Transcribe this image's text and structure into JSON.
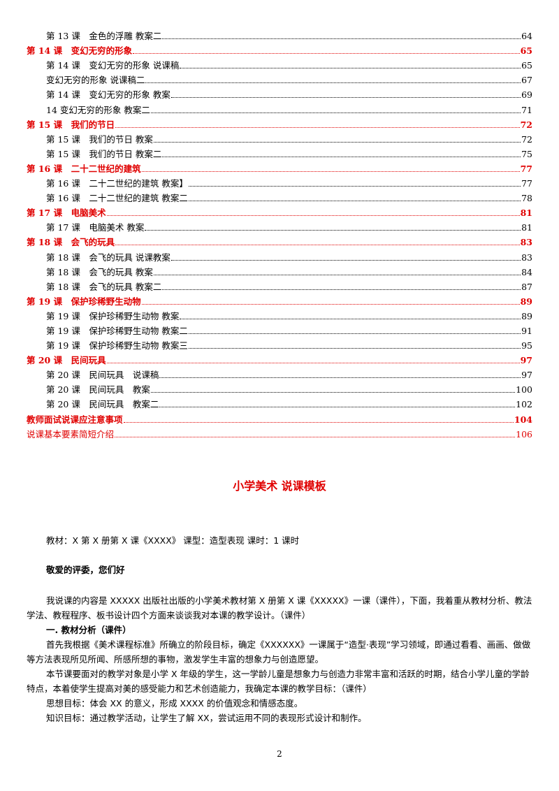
{
  "toc": [
    {
      "level": 2,
      "text": "第 13 课　金色的浮雕  教案二",
      "page": "64"
    },
    {
      "level": 1,
      "text": "第 14 课　变幻无穷的形象",
      "page": "65"
    },
    {
      "level": 2,
      "text": "第 14 课　变幻无穷的形象  说课稿",
      "page": "65"
    },
    {
      "level": 2,
      "text": "变幻无穷的形象  说课稿二",
      "page": "67"
    },
    {
      "level": 2,
      "text": "第 14 课　变幻无穷的形象  教案",
      "page": "69"
    },
    {
      "level": 2,
      "text": "14 变幻无穷的形象  教案二",
      "page": "71"
    },
    {
      "level": 1,
      "text": "第 15 课　我们的节日",
      "page": "72"
    },
    {
      "level": 2,
      "text": "第 15 课　我们的节日  教案",
      "page": "72"
    },
    {
      "level": 2,
      "text": "第 15 课　我们的节日  教案二",
      "page": "75"
    },
    {
      "level": 1,
      "text": "第 16 课　二十二世纪的建筑",
      "page": "77"
    },
    {
      "level": 2,
      "text": "第 16 课　二十二世纪的建筑  教案】",
      "page": "77"
    },
    {
      "level": 2,
      "text": "第 16 课　二十二世纪的建筑  教案二",
      "page": "78"
    },
    {
      "level": 1,
      "text": "第 17 课　电脑美术",
      "page": "81"
    },
    {
      "level": 2,
      "text": "第 17 课　电脑美术  教案",
      "page": "81"
    },
    {
      "level": 1,
      "text": "第 18 课　会飞的玩具",
      "page": "83"
    },
    {
      "level": 2,
      "text": "第 18 课　会飞的玩具  说课教案",
      "page": "83"
    },
    {
      "level": 2,
      "text": "第 18 课　会飞的玩具  教案",
      "page": "84"
    },
    {
      "level": 2,
      "text": "第 18 课　会飞的玩具  教案二",
      "page": "87"
    },
    {
      "level": 1,
      "text": "第 19 课　保护珍稀野生动物",
      "page": "89"
    },
    {
      "level": 2,
      "text": "第 19 课　保护珍稀野生动物  教案",
      "page": "89"
    },
    {
      "level": 2,
      "text": "第 19 课　保护珍稀野生动物  教案二",
      "page": "91"
    },
    {
      "level": 2,
      "text": "第 19 课　保护珍稀野生动物  教案三",
      "page": "95"
    },
    {
      "level": 1,
      "text": "第 20 课　民间玩具",
      "page": "97"
    },
    {
      "level": 2,
      "text": "第 20 课　民间玩具　说课稿",
      "page": "97"
    },
    {
      "level": 2,
      "text": "第 20 课　民间玩具　教案",
      "page": "100"
    },
    {
      "level": 2,
      "text": "第 20 课　民间玩具　教案二",
      "page": "102"
    },
    {
      "level": 1,
      "text": "教师面试说课应注意事项",
      "page": "104"
    },
    {
      "level": 3,
      "text": "说课基本要素简短介绍",
      "page": "106"
    }
  ],
  "title": "小学美术 说课模板",
  "meta_line": "教材：X 第 X 册第 X 课《XXXX》  课型：造型表现  课时：1 课时",
  "greeting": "敬爱的评委，您们好",
  "intro": "我说课的内容是 XXXXX 出版社出版的小学美术教材第 X 册第 X 课《XXXXX》一课（课件），下面，我着重从教材分析、教法学法、教程程序、板书设计四个方面来谈谈我对本课的教学设计。（课件）",
  "section1_heading": "一. 教材分析（课件）",
  "para1": "首先我根据《美术课程标准》所确立的阶段目标，确定《XXXXXX》一课属于“造型·表现”学习领域，即通过看看、画画、做做等方法表现所见所闻、所感所想的事物，激发学生丰富的想象力与创造愿望。",
  "para2": "本节课要面对的教学对象是小学 X 年级的学生，这一学龄儿童是想象力与创造力非常丰富和活跃的时期，结合小学儿童的学龄特点，本着使学生提高对美的感受能力和艺术创造能力，我确定本课的教学目标：（课件）",
  "goal1": "思想目标：体会 XX 的意义，形成 XXXX 的价值观念和情感态度。",
  "goal2": "知识目标：通过教学活动，让学生了解 XX，尝试运用不同的表现形式设计和制作。",
  "page_number": "2"
}
